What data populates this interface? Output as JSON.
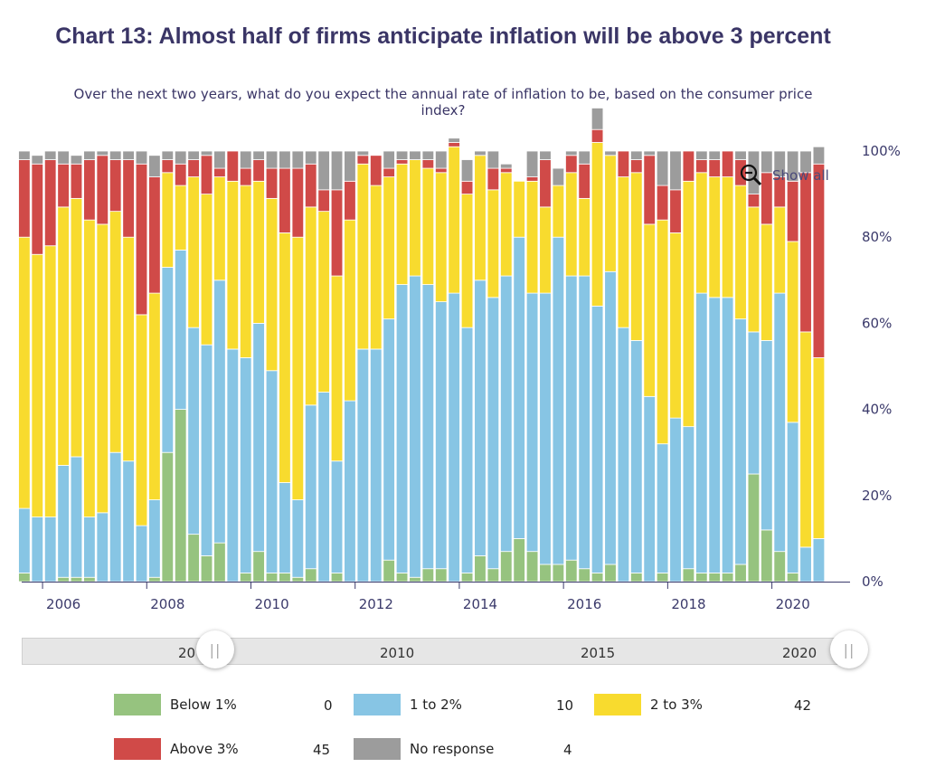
{
  "title": "Chart 13: Almost half of firms anticipate inflation will be above 3 percent",
  "subtitle": "Over the next two years, what do you expect the annual rate of inflation to be, based on the consumer price index?",
  "show_all_label": "Show all",
  "navigator": {
    "labels": [
      "20",
      "2010",
      "2015",
      "2020"
    ]
  },
  "colors": {
    "below_1": "#96c37f",
    "one_to_two": "#87c5e4",
    "two_to_three": "#f8db2e",
    "above_3": "#d04a48",
    "no_response": "#9c9c9c"
  },
  "legend": [
    {
      "label": "Below 1%",
      "value": "0"
    },
    {
      "label": "1 to 2%",
      "value": "10"
    },
    {
      "label": "2 to 3%",
      "value": "42"
    },
    {
      "label": "Above 3%",
      "value": "45"
    },
    {
      "label": "No response",
      "value": "4"
    }
  ],
  "chart_data": {
    "type": "bar",
    "stacked": true,
    "x_start": 2005.65,
    "x_step": 0.25,
    "xlim": [
      2005.6,
      2021.5
    ],
    "x_ticks": [
      "2006",
      "2008",
      "2010",
      "2012",
      "2014",
      "2016",
      "2018",
      "2020"
    ],
    "y_ticks": [
      "0%",
      "20%",
      "40%",
      "60%",
      "80%",
      "100%"
    ],
    "ylim": [
      0,
      100
    ],
    "series": [
      {
        "name": "Below 1%",
        "values": [
          2,
          0,
          0,
          1,
          1,
          1,
          0,
          0,
          0,
          0,
          1,
          30,
          40,
          11,
          6,
          9,
          0,
          2,
          7,
          2,
          2,
          1,
          3,
          0,
          2,
          0,
          0,
          0,
          5,
          2,
          1,
          3,
          3,
          0,
          2,
          6,
          3,
          7,
          10,
          7,
          4,
          4,
          5,
          3,
          2,
          4,
          0,
          2,
          0,
          2,
          0,
          3,
          2,
          2,
          2,
          4,
          25,
          12,
          7,
          2,
          0,
          0
        ]
      },
      {
        "name": "1 to 2%",
        "values": [
          15,
          15,
          15,
          26,
          28,
          14,
          16,
          30,
          28,
          13,
          18,
          43,
          37,
          48,
          49,
          61,
          54,
          50,
          53,
          47,
          21,
          18,
          38,
          44,
          26,
          42,
          54,
          54,
          56,
          67,
          70,
          66,
          62,
          67,
          57,
          64,
          63,
          64,
          70,
          60,
          63,
          76,
          66,
          68,
          62,
          68,
          59,
          54,
          43,
          30,
          38,
          33,
          65,
          64,
          64,
          57,
          33,
          44,
          60,
          35,
          8,
          10
        ]
      },
      {
        "name": "2 to 3%",
        "values": [
          63,
          61,
          63,
          60,
          60,
          69,
          67,
          56,
          52,
          49,
          48,
          22,
          15,
          35,
          35,
          24,
          39,
          40,
          33,
          40,
          58,
          61,
          46,
          42,
          43,
          42,
          43,
          38,
          33,
          28,
          27,
          27,
          30,
          34,
          31,
          29,
          25,
          24,
          13,
          26,
          20,
          12,
          24,
          18,
          38,
          27,
          35,
          39,
          40,
          52,
          43,
          57,
          28,
          28,
          28,
          31,
          29,
          27,
          20,
          42,
          50,
          42
        ]
      },
      {
        "name": "Above 3%",
        "values": [
          18,
          21,
          20,
          10,
          8,
          14,
          16,
          12,
          18,
          35,
          27,
          3,
          5,
          4,
          9,
          2,
          7,
          4,
          5,
          7,
          15,
          16,
          10,
          5,
          20,
          9,
          2,
          7,
          2,
          1,
          0,
          2,
          1,
          1,
          3,
          0,
          5,
          1,
          0,
          1,
          11,
          0,
          4,
          8,
          3,
          0,
          6,
          3,
          16,
          8,
          10,
          7,
          3,
          4,
          6,
          6,
          3,
          12,
          7,
          14,
          37,
          45
        ]
      },
      {
        "name": "No response",
        "values": [
          2,
          2,
          2,
          3,
          2,
          2,
          1,
          2,
          2,
          3,
          5,
          2,
          3,
          2,
          1,
          4,
          0,
          4,
          2,
          4,
          4,
          4,
          3,
          9,
          9,
          7,
          1,
          0,
          4,
          2,
          2,
          2,
          4,
          1,
          5,
          1,
          4,
          1,
          0,
          6,
          2,
          4,
          1,
          3,
          5,
          1,
          0,
          2,
          1,
          8,
          9,
          0,
          2,
          2,
          0,
          2,
          10,
          5,
          6,
          7,
          5,
          4
        ]
      }
    ]
  }
}
